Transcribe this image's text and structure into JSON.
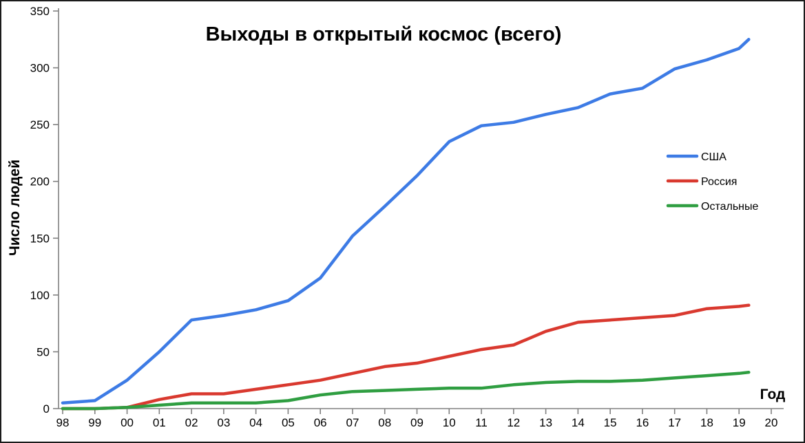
{
  "chart_data": {
    "type": "line",
    "title": "Выходы в открытый космос (всего)",
    "xlabel": "Год",
    "ylabel": "Число людей",
    "grid": false,
    "legend_position": "right",
    "ylim": [
      0,
      350
    ],
    "y_ticks": [
      0,
      50,
      100,
      150,
      200,
      250,
      300,
      350
    ],
    "x_range": [
      1998,
      2020
    ],
    "x_ticks": [
      "98",
      "99",
      "00",
      "01",
      "02",
      "03",
      "04",
      "05",
      "06",
      "07",
      "08",
      "09",
      "10",
      "11",
      "12",
      "13",
      "14",
      "15",
      "16",
      "17",
      "18",
      "19",
      "20"
    ],
    "x_tick_years": [
      1998,
      1999,
      2000,
      2001,
      2002,
      2003,
      2004,
      2005,
      2006,
      2007,
      2008,
      2009,
      2010,
      2011,
      2012,
      2013,
      2014,
      2015,
      2016,
      2017,
      2018,
      2019,
      2020
    ],
    "series": [
      {
        "id": "usa",
        "name": "США",
        "color": "#3D7BE5",
        "x": [
          1998,
          1999,
          2000,
          2001,
          2002,
          2003,
          2004,
          2005,
          2006,
          2007,
          2008,
          2009,
          2010,
          2011,
          2012,
          2013,
          2014,
          2015,
          2016,
          2017,
          2018,
          2019,
          2019.3
        ],
        "values": [
          5,
          7,
          25,
          50,
          78,
          82,
          87,
          95,
          115,
          152,
          178,
          205,
          235,
          249,
          252,
          259,
          265,
          277,
          282,
          299,
          307,
          317,
          325
        ]
      },
      {
        "id": "russia",
        "name": "Россия",
        "color": "#D9392F",
        "x": [
          1998,
          1999,
          2000,
          2001,
          2002,
          2003,
          2004,
          2005,
          2006,
          2007,
          2008,
          2009,
          2010,
          2011,
          2012,
          2013,
          2014,
          2015,
          2016,
          2017,
          2018,
          2019,
          2019.3
        ],
        "values": [
          0,
          0,
          1,
          8,
          13,
          13,
          17,
          21,
          25,
          31,
          37,
          40,
          46,
          52,
          56,
          68,
          76,
          78,
          80,
          82,
          88,
          90,
          91
        ]
      },
      {
        "id": "others",
        "name": "Остальные",
        "color": "#2F9E41",
        "x": [
          1998,
          1999,
          2000,
          2001,
          2002,
          2003,
          2004,
          2005,
          2006,
          2007,
          2008,
          2009,
          2010,
          2011,
          2012,
          2013,
          2014,
          2015,
          2016,
          2017,
          2018,
          2019,
          2019.3
        ],
        "values": [
          0,
          0,
          1,
          3,
          5,
          5,
          5,
          7,
          12,
          15,
          16,
          17,
          18,
          18,
          21,
          23,
          24,
          24,
          25,
          27,
          29,
          31,
          32
        ]
      }
    ]
  },
  "colors": {
    "axis": "#808080",
    "text": "#000000",
    "background": "#ffffff"
  }
}
